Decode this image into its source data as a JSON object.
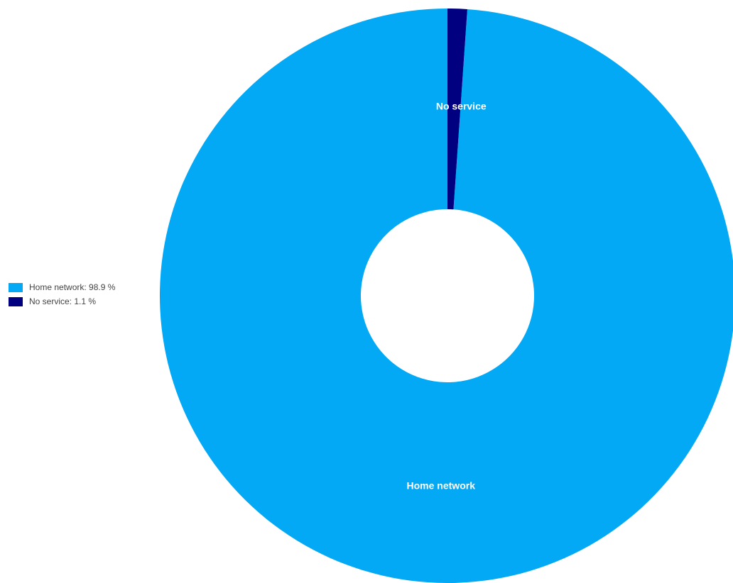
{
  "chart_data": {
    "type": "pie",
    "donut": true,
    "title": "",
    "legend_position": "left",
    "slices": [
      {
        "name": "Home network",
        "value": 98.9,
        "legend_label": "Home network: 98.9 %",
        "slice_label": "Home network",
        "color": "#03A9F4"
      },
      {
        "name": "No service",
        "value": 1.1,
        "legend_label": "No service: 1.1 %",
        "slice_label": "No service",
        "color": "#000080"
      }
    ]
  }
}
